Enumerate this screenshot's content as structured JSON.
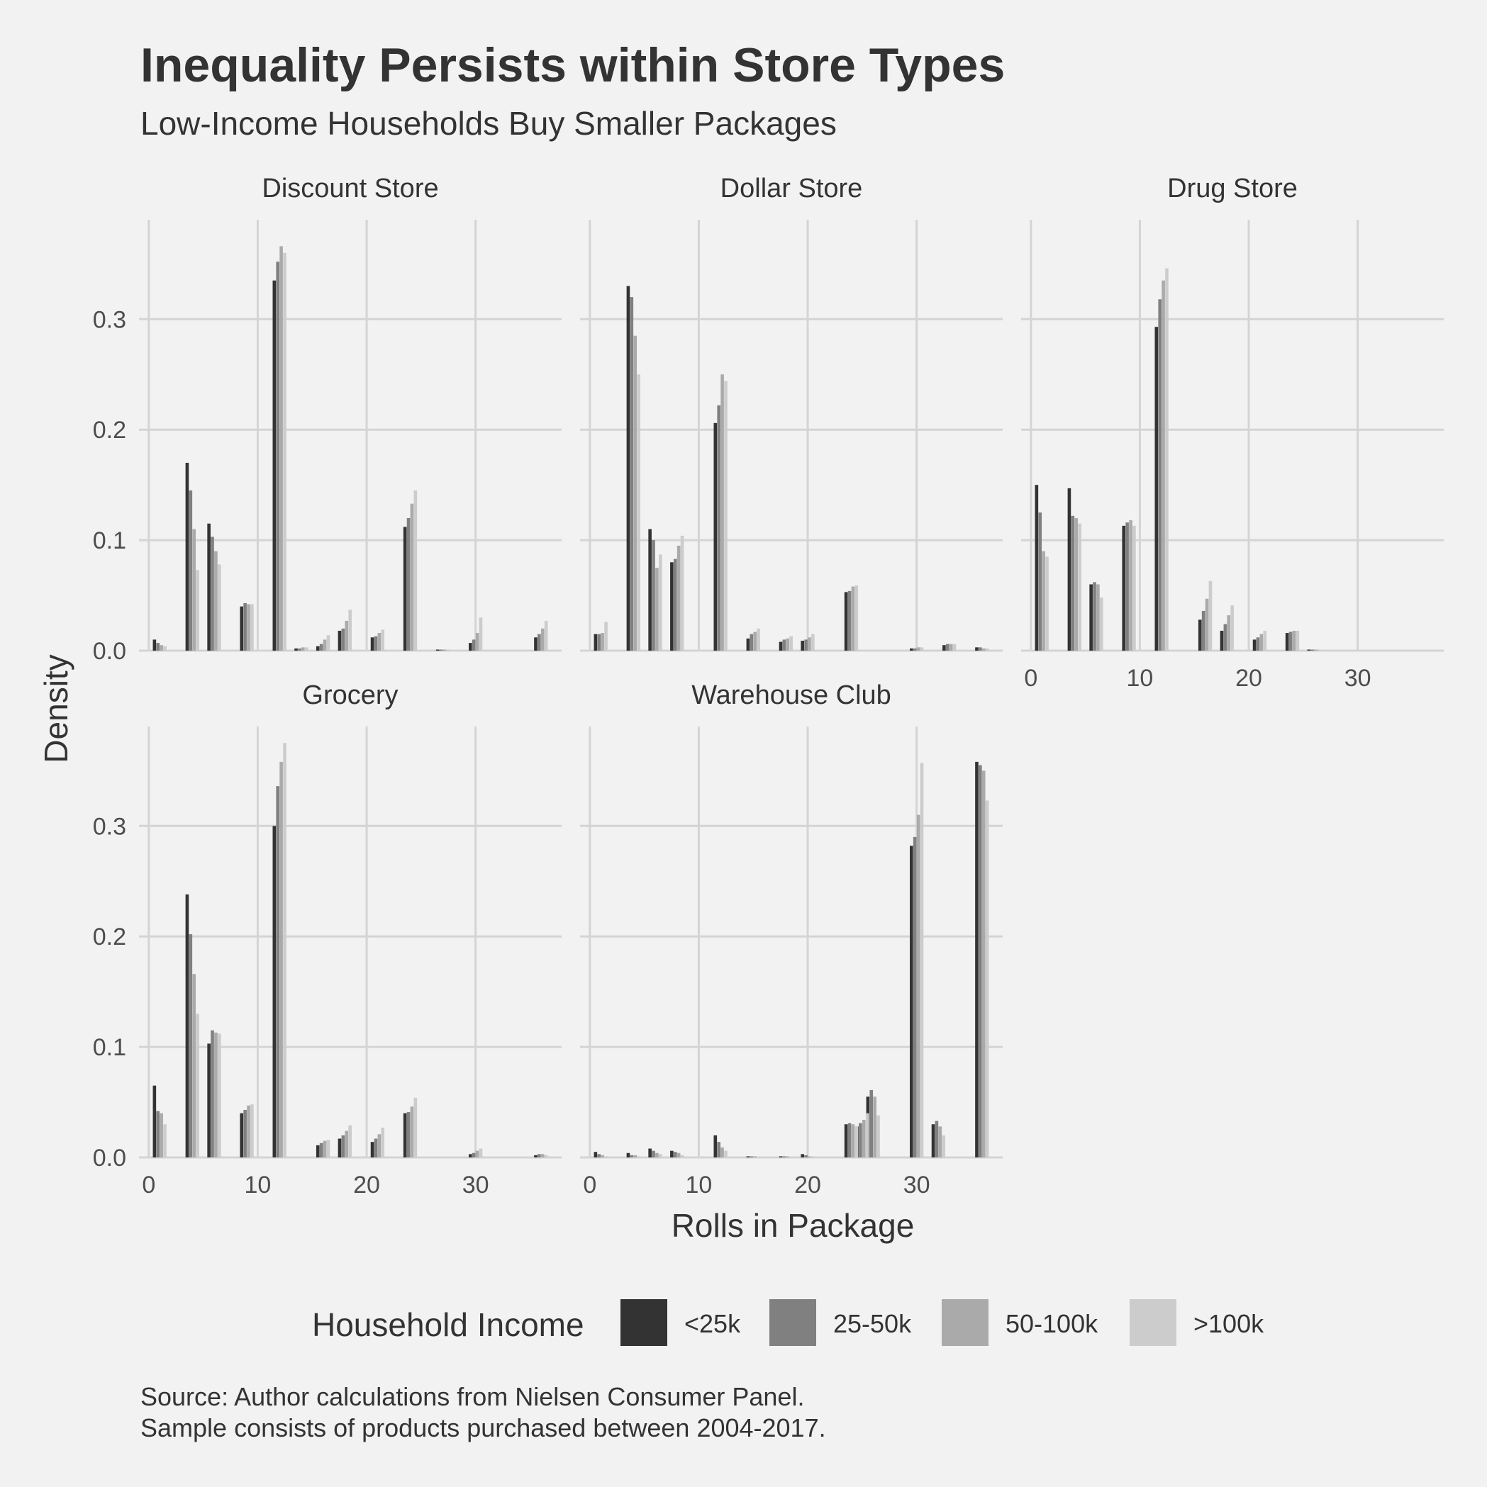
{
  "chart_data": {
    "type": "bar",
    "title": "Inequality Persists within Store Types",
    "subtitle": "Low-Income Households Buy Smaller Packages",
    "xlabel": "Rolls in Package",
    "ylabel": "Density",
    "xlim": [
      0,
      37
    ],
    "ylim": [
      0,
      0.39
    ],
    "x_ticks": [
      0,
      10,
      20,
      30
    ],
    "y_ticks": [
      0.0,
      0.1,
      0.2,
      0.3
    ],
    "x_tick_labels": [
      "0",
      "10",
      "20",
      "30"
    ],
    "y_tick_labels": [
      "0.0",
      "0.1",
      "0.2",
      "0.3"
    ],
    "grid": true,
    "legend": {
      "title": "Household Income",
      "position": "bottom",
      "entries": [
        "<25k",
        "25-50k",
        "50-100k",
        ">100k"
      ],
      "colors": [
        "#333333",
        "#808080",
        "#aaaaaa",
        "#cccccc"
      ]
    },
    "caption": [
      "Source: Author calculations from Nielsen Consumer Panel.",
      "Sample consists of products purchased between 2004-2017."
    ],
    "facets": [
      {
        "name": "Discount Store",
        "x": [
          1,
          4,
          6,
          9,
          12,
          14,
          16,
          18,
          21,
          24,
          27,
          30,
          36
        ],
        "series": [
          {
            "name": "<25k",
            "values": [
              0.01,
              0.17,
              0.115,
              0.04,
              0.335,
              0.002,
              0.004,
              0.018,
              0.012,
              0.112,
              0.001,
              0.007,
              0.012
            ]
          },
          {
            "name": "25-50k",
            "values": [
              0.007,
              0.145,
              0.103,
              0.043,
              0.352,
              0.002,
              0.006,
              0.02,
              0.013,
              0.12,
              0.001,
              0.01,
              0.015
            ]
          },
          {
            "name": "50-100k",
            "values": [
              0.005,
              0.11,
              0.09,
              0.042,
              0.366,
              0.003,
              0.01,
              0.027,
              0.016,
              0.133,
              0.001,
              0.016,
              0.02
            ]
          },
          {
            "name": ">100k",
            "values": [
              0.004,
              0.073,
              0.078,
              0.042,
              0.36,
              0.003,
              0.014,
              0.037,
              0.019,
              0.145,
              0.001,
              0.03,
              0.027
            ]
          }
        ]
      },
      {
        "name": "Dollar Store",
        "x": [
          1,
          4,
          6,
          8,
          12,
          15,
          18,
          20,
          24,
          30,
          33,
          36
        ],
        "series": [
          {
            "name": "<25k",
            "values": [
              0.015,
              0.33,
              0.11,
              0.08,
              0.206,
              0.011,
              0.008,
              0.009,
              0.053,
              0.002,
              0.005,
              0.003
            ]
          },
          {
            "name": "25-50k",
            "values": [
              0.015,
              0.32,
              0.1,
              0.083,
              0.222,
              0.015,
              0.01,
              0.01,
              0.054,
              0.002,
              0.006,
              0.003
            ]
          },
          {
            "name": "50-100k",
            "values": [
              0.016,
              0.285,
              0.075,
              0.095,
              0.25,
              0.017,
              0.011,
              0.012,
              0.058,
              0.003,
              0.006,
              0.002
            ]
          },
          {
            "name": ">100k",
            "values": [
              0.026,
              0.25,
              0.087,
              0.104,
              0.244,
              0.02,
              0.013,
              0.015,
              0.059,
              0.003,
              0.006,
              0.002
            ]
          }
        ]
      },
      {
        "name": "Drug Store",
        "x": [
          1,
          4,
          6,
          9,
          12,
          16,
          18,
          21,
          24,
          26
        ],
        "series": [
          {
            "name": "<25k",
            "values": [
              0.15,
              0.147,
              0.06,
              0.113,
              0.293,
              0.028,
              0.018,
              0.01,
              0.016,
              0.001
            ]
          },
          {
            "name": "25-50k",
            "values": [
              0.125,
              0.122,
              0.062,
              0.116,
              0.318,
              0.036,
              0.024,
              0.012,
              0.017,
              0.001
            ]
          },
          {
            "name": "50-100k",
            "values": [
              0.09,
              0.12,
              0.06,
              0.118,
              0.335,
              0.047,
              0.032,
              0.015,
              0.018,
              0.001
            ]
          },
          {
            "name": ">100k",
            "values": [
              0.085,
              0.115,
              0.048,
              0.113,
              0.346,
              0.063,
              0.041,
              0.018,
              0.018,
              0.001
            ]
          }
        ]
      },
      {
        "name": "Grocery",
        "x": [
          1,
          4,
          6,
          9,
          12,
          16,
          18,
          21,
          24,
          30,
          36
        ],
        "series": [
          {
            "name": "<25k",
            "values": [
              0.065,
              0.238,
              0.103,
              0.04,
              0.3,
              0.011,
              0.017,
              0.014,
              0.04,
              0.003,
              0.002
            ]
          },
          {
            "name": "25-50k",
            "values": [
              0.042,
              0.202,
              0.115,
              0.043,
              0.336,
              0.013,
              0.02,
              0.017,
              0.041,
              0.004,
              0.003
            ]
          },
          {
            "name": "50-100k",
            "values": [
              0.04,
              0.166,
              0.113,
              0.047,
              0.358,
              0.015,
              0.024,
              0.021,
              0.046,
              0.006,
              0.003
            ]
          },
          {
            "name": ">100k",
            "values": [
              0.03,
              0.13,
              0.112,
              0.048,
              0.375,
              0.016,
              0.029,
              0.027,
              0.054,
              0.008,
              0.002
            ]
          }
        ]
      },
      {
        "name": "Warehouse Club",
        "x": [
          1,
          4,
          6,
          8,
          12,
          15,
          18,
          20,
          24,
          25,
          26,
          30,
          32,
          36
        ],
        "series": [
          {
            "name": "<25k",
            "values": [
              0.005,
              0.004,
              0.008,
              0.006,
              0.02,
              0.001,
              0.001,
              0.003,
              0.03,
              0.028,
              0.055,
              0.282,
              0.03,
              0.358
            ]
          },
          {
            "name": "25-50k",
            "values": [
              0.003,
              0.002,
              0.006,
              0.005,
              0.014,
              0.001,
              0.001,
              0.002,
              0.031,
              0.031,
              0.061,
              0.29,
              0.033,
              0.355
            ]
          },
          {
            "name": "50-100k",
            "values": [
              0.002,
              0.002,
              0.004,
              0.004,
              0.009,
              0.001,
              0.001,
              0.001,
              0.03,
              0.034,
              0.055,
              0.31,
              0.028,
              0.35
            ]
          },
          {
            "name": ">100k",
            "values": [
              0.001,
              0.001,
              0.003,
              0.002,
              0.006,
              0.0,
              0.0,
              0.001,
              0.028,
              0.04,
              0.038,
              0.357,
              0.02,
              0.323
            ]
          }
        ]
      }
    ]
  }
}
